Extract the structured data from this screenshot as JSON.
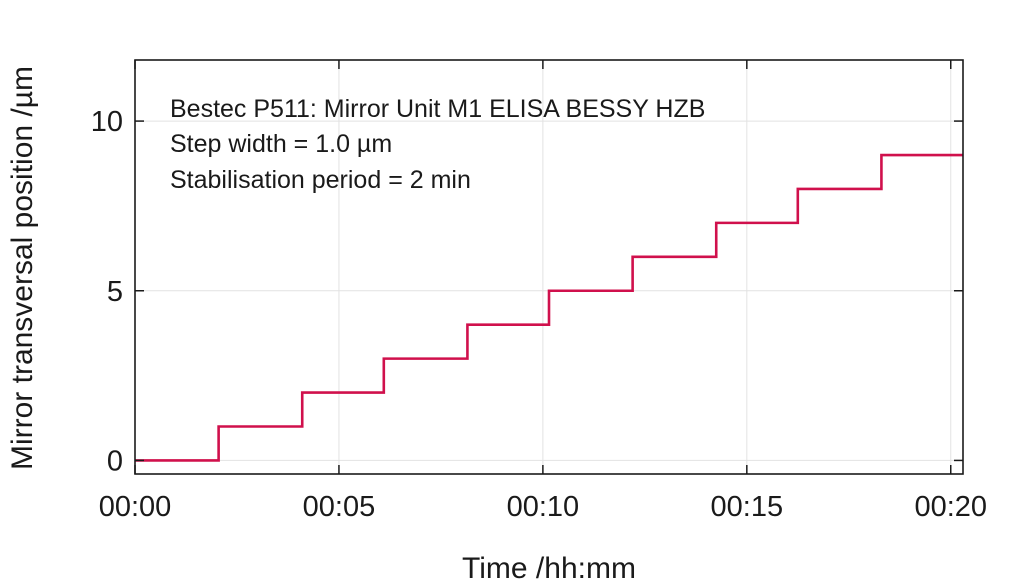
{
  "chart_data": {
    "type": "line",
    "xlabel": "Time /hh:mm",
    "ylabel": "Mirror transversal position /µm",
    "annotations": [
      "Bestec P511: Mirror Unit M1 ELISA BESSY HZB",
      "Step width = 1.0 µm",
      "Stabilisation period = 2 min"
    ],
    "x_ticks": [
      "00:00",
      "00:05",
      "00:10",
      "00:15",
      "00:20"
    ],
    "x_tick_values": [
      0,
      5,
      10,
      15,
      20
    ],
    "y_ticks": [
      "0",
      "5",
      "10"
    ],
    "y_tick_values": [
      0,
      5,
      10
    ],
    "xlim": [
      0,
      20.3
    ],
    "ylim": [
      -0.4,
      11.8
    ],
    "grid": true,
    "series": [
      {
        "color": "#d0104c",
        "step": "post",
        "x": [
          0,
          2.05,
          4.1,
          6.1,
          8.15,
          10.15,
          12.2,
          14.25,
          16.25,
          18.3,
          20.3
        ],
        "y": [
          0,
          1,
          2,
          3,
          4,
          5,
          6,
          7,
          8,
          9,
          9
        ]
      }
    ]
  }
}
